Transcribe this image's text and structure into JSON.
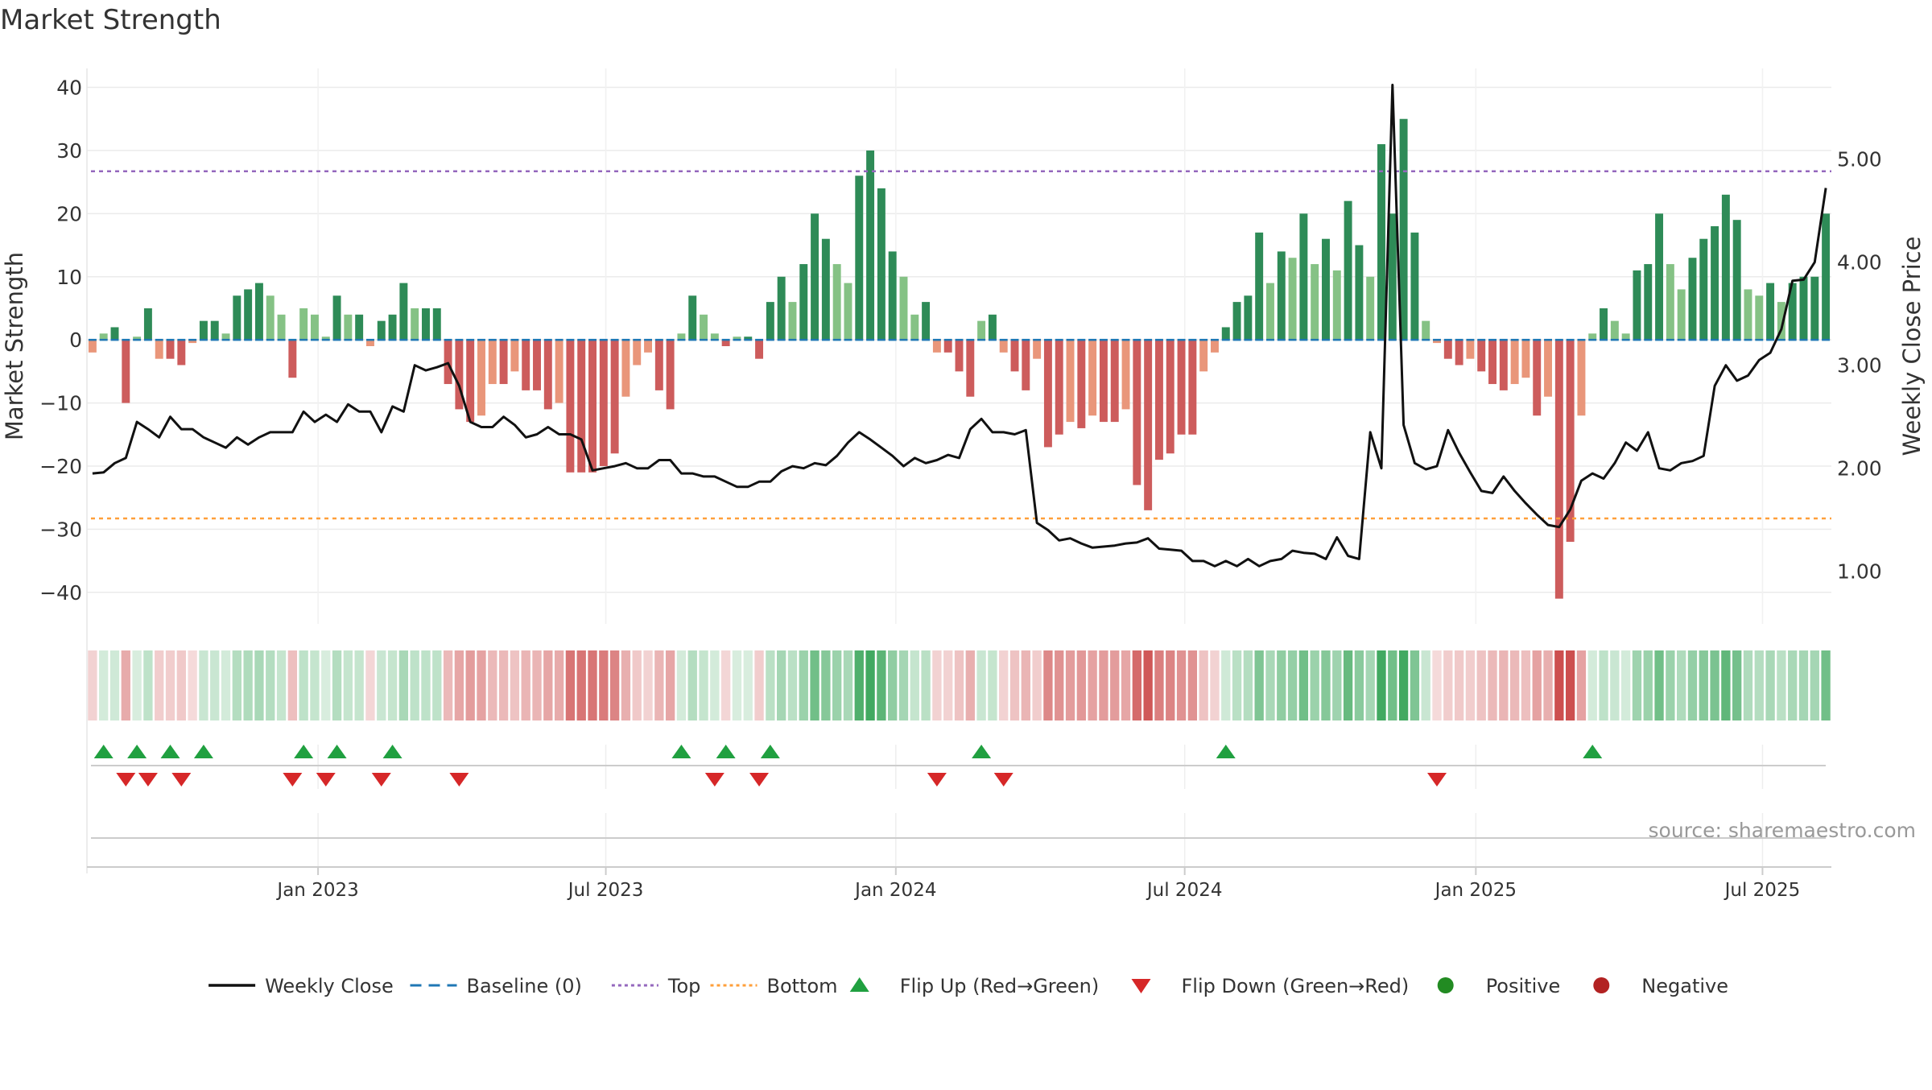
{
  "title": "Market Strength",
  "watermark": "source: sharemaestro.com",
  "colors": {
    "pos_strong": "#2e8b57",
    "pos_weak": "#85c285",
    "neg_strong": "#cd5c5c",
    "neg_weak": "#e9967a",
    "close_line": "#111111",
    "baseline": "#1f77b4",
    "top_line": "#9467bd",
    "bottom_line": "#ff9f3a",
    "flip_up": "#20a040",
    "flip_down": "#d62728",
    "positive_dot": "#228b22",
    "negative_dot": "#b22222",
    "grid": "#ebebeb"
  },
  "legend": [
    {
      "label": "Weekly Close",
      "kind": "line",
      "color": "#111111"
    },
    {
      "label": "Baseline (0)",
      "kind": "dash",
      "color": "#1f77b4"
    },
    {
      "label": "Top",
      "kind": "dot",
      "color": "#9467bd"
    },
    {
      "label": "Bottom",
      "kind": "dot",
      "color": "#ff9f3a"
    },
    {
      "label": "Flip Up (Red→Green)",
      "kind": "tri-up",
      "color": "#20a040"
    },
    {
      "label": "Flip Down (Green→Red)",
      "kind": "tri-down",
      "color": "#d62728"
    },
    {
      "label": "Positive",
      "kind": "circle",
      "color": "#228b22"
    },
    {
      "label": "Negative",
      "kind": "circle",
      "color": "#b22222"
    }
  ],
  "chart_data": {
    "type": "bar",
    "title": "Market Strength",
    "ylabel": "Market Strength",
    "y2label": "Weekly Close Price",
    "ylim": [
      -45,
      43
    ],
    "y2lim": [
      0.49,
      5.88
    ],
    "yticks": [
      "40",
      "30",
      "20",
      "10",
      "0",
      "−10",
      "−20",
      "−30",
      "−40"
    ],
    "y2ticks": [
      "5.00",
      "4.00",
      "3.00",
      "2.00",
      "1.00"
    ],
    "xticks": [
      "Jan 2023",
      "Jul 2023",
      "Jan 2024",
      "Jul 2024",
      "Jan 2025",
      "Jul 2025"
    ],
    "top_threshold": 26.7,
    "bottom_threshold": -28.3,
    "baseline": 0,
    "grid": true,
    "legend_position": "bottom",
    "strength": [
      -2,
      1,
      2,
      -10,
      0.5,
      5,
      -3,
      -3,
      -4,
      -0.5,
      3,
      3,
      1,
      7,
      8,
      9,
      7,
      4,
      -6,
      5,
      4,
      0.5,
      7,
      4,
      4,
      -1,
      3,
      4,
      9,
      5,
      5,
      5,
      -7,
      -11,
      -13,
      -12,
      -7,
      -7,
      -5,
      -8,
      -8,
      -11,
      -10,
      -21,
      -21,
      -21,
      -20,
      -18,
      -9,
      -4,
      -2,
      -8,
      -11,
      1,
      7,
      4,
      1,
      -1,
      0.5,
      0.5,
      -3,
      6,
      10,
      6,
      12,
      20,
      16,
      12,
      9,
      26,
      30,
      24,
      14,
      10,
      4,
      6,
      -2,
      -2,
      -5,
      -9,
      3,
      4,
      -2,
      -5,
      -8,
      -3,
      -17,
      -15,
      -13,
      -14,
      -12,
      -13,
      -13,
      -11,
      -23,
      -27,
      -19,
      -18,
      -15,
      -15,
      -5,
      -2,
      2,
      6,
      7,
      17,
      9,
      14,
      13,
      20,
      12,
      16,
      11,
      22,
      15,
      10,
      31,
      20,
      35,
      17,
      3,
      -0.5,
      -3,
      -4,
      -3,
      -5,
      -7,
      -8,
      -7,
      -6,
      -12,
      -9,
      -41,
      -32,
      -12,
      1,
      5,
      3,
      1,
      11,
      12,
      20,
      12,
      8,
      13,
      16,
      18,
      23,
      19,
      8,
      7,
      9,
      6,
      9,
      10,
      10,
      20
    ],
    "close": [
      1.95,
      1.96,
      2.05,
      2.1,
      2.45,
      2.38,
      2.3,
      2.5,
      2.38,
      2.38,
      2.3,
      2.25,
      2.2,
      2.3,
      2.23,
      2.3,
      2.35,
      2.35,
      2.35,
      2.55,
      2.45,
      2.52,
      2.45,
      2.62,
      2.55,
      2.55,
      2.35,
      2.6,
      2.55,
      3.0,
      2.95,
      2.98,
      3.02,
      2.8,
      2.45,
      2.4,
      2.4,
      2.5,
      2.42,
      2.3,
      2.33,
      2.4,
      2.33,
      2.33,
      2.28,
      1.98,
      2.0,
      2.02,
      2.05,
      2.0,
      2.0,
      2.08,
      2.08,
      1.95,
      1.95,
      1.92,
      1.92,
      1.87,
      1.82,
      1.82,
      1.87,
      1.87,
      1.97,
      2.02,
      2.0,
      2.05,
      2.03,
      2.12,
      2.25,
      2.35,
      2.28,
      2.2,
      2.12,
      2.02,
      2.1,
      2.05,
      2.08,
      2.13,
      2.1,
      2.38,
      2.48,
      2.35,
      2.35,
      2.33,
      2.37,
      1.47,
      1.4,
      1.3,
      1.32,
      1.27,
      1.23,
      1.24,
      1.25,
      1.27,
      1.28,
      1.32,
      1.22,
      1.21,
      1.2,
      1.1,
      1.1,
      1.05,
      1.1,
      1.05,
      1.12,
      1.05,
      1.1,
      1.12,
      1.2,
      1.18,
      1.17,
      1.12,
      1.33,
      1.15,
      1.12,
      2.35,
      2.0,
      5.72,
      2.42,
      2.05,
      1.99,
      2.02,
      2.37,
      2.15,
      1.96,
      1.78,
      1.76,
      1.92,
      1.78,
      1.66,
      1.55,
      1.45,
      1.43,
      1.6,
      1.88,
      1.95,
      1.9,
      2.05,
      2.25,
      2.17,
      2.35,
      2.0,
      1.98,
      2.05,
      2.07,
      2.12,
      2.8,
      3.0,
      2.85,
      2.9,
      3.05,
      3.12,
      3.35,
      3.82,
      3.83,
      4.0,
      4.72
    ],
    "flip_up_weeks": [
      1,
      4,
      7,
      10,
      19,
      22,
      27,
      53,
      57,
      61,
      80,
      102,
      135
    ],
    "flip_down_weeks": [
      3,
      5,
      8,
      18,
      21,
      26,
      33,
      56,
      60,
      76,
      82,
      121
    ]
  }
}
